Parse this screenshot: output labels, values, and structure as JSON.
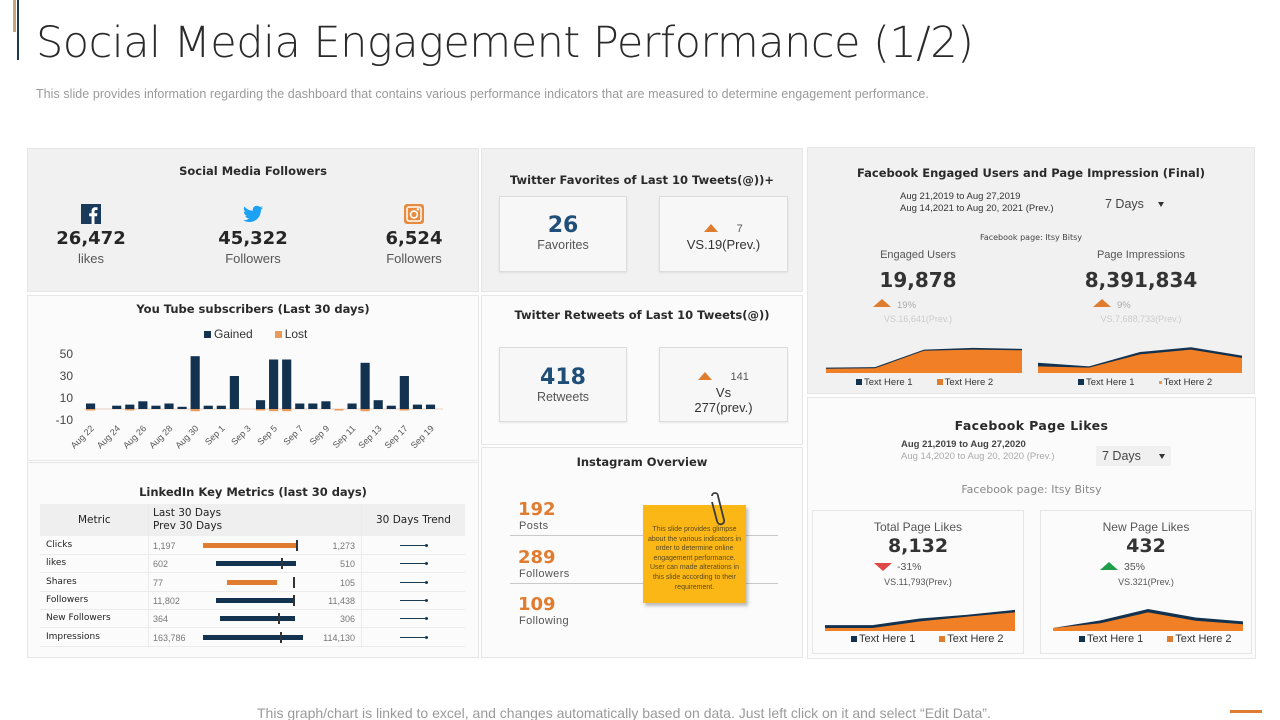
{
  "header": {
    "title": "Social Media Engagement Performance (1/2)",
    "subtitle": "This slide provides  information  regarding  the dashboard  that contains various  performance  indicators that are measured  to determine  engagement  performance."
  },
  "footer": {
    "note": "This graph/chart is linked to excel, and changes automatically based on data. Just left click on it and select “Edit Data”."
  },
  "colors": {
    "navy": "#13324f",
    "orange": "#e07c2f",
    "twitter_blue": "#1da1f2",
    "facebook_navy": "#1a3a5c",
    "red": "#e04848",
    "green": "#1e9e4a",
    "sticky_yellow": "#fbb715"
  },
  "social_followers": {
    "title": "Social Media Followers",
    "items": [
      {
        "icon": "facebook-icon",
        "value": "26,472",
        "label": "likes"
      },
      {
        "icon": "twitter-icon",
        "value": "45,322",
        "label": "Followers"
      },
      {
        "icon": "instagram-icon",
        "value": "6,524",
        "label": "Followers"
      }
    ]
  },
  "youtube": {
    "title": "You Tube subscribers (Last 30 days)",
    "legend": [
      "Gained",
      "Lost"
    ]
  },
  "chart_data": {
    "type": "bar",
    "title": "You Tube subscribers (Last 30 days)",
    "xlabel": "",
    "ylabel": "",
    "ylim": [
      -10,
      50
    ],
    "yticks": [
      50,
      30,
      10,
      -10
    ],
    "tick_labels": [
      "Aug 22",
      "Aug 24",
      "Aug 26",
      "Aug 28",
      "Aug 30",
      "Sep 1",
      "Sep 3",
      "Sep 5",
      "Sep 7",
      "Sep 9",
      "Sep 11",
      "Sep 13",
      "Sep 17",
      "Sep 19"
    ],
    "categories": [
      "Aug 22",
      "Aug 23",
      "Aug 24",
      "Aug 25",
      "Aug 26",
      "Aug 27",
      "Aug 28",
      "Aug 29",
      "Aug 30",
      "Aug 31",
      "Sep 1",
      "Sep 2",
      "Sep 3",
      "Sep 4",
      "Sep 5",
      "Sep 6",
      "Sep 7",
      "Sep 8",
      "Sep 9",
      "Sep 10",
      "Sep 11",
      "Sep 12",
      "Sep 13",
      "Sep 15",
      "Sep 17",
      "Sep 18",
      "Sep 19"
    ],
    "series": [
      {
        "name": "Gained",
        "values": [
          5,
          0,
          3,
          4,
          7,
          3,
          5,
          2,
          48,
          3,
          3,
          30,
          0,
          8,
          45,
          45,
          5,
          5,
          7,
          0,
          5,
          42,
          8,
          3,
          30,
          4,
          4
        ]
      },
      {
        "name": "Lost",
        "values": [
          -1,
          0,
          0,
          -1,
          0,
          0,
          0,
          0,
          -2,
          0,
          0,
          0,
          0,
          -1,
          -2,
          -2,
          0,
          0,
          0,
          -0.5,
          0,
          -2,
          0,
          0,
          -1,
          0,
          0
        ]
      }
    ],
    "legend": "top"
  },
  "linkedin": {
    "title": "LinkedIn Key Metrics (last 30 days)",
    "headers": {
      "metric": "Metric",
      "last": "Last 30 Days",
      "prev": "Prev 30 Days",
      "trend": "30 Days Trend"
    },
    "rows": [
      {
        "metric": "Clicks",
        "last": "1,197",
        "prev": "1,273",
        "bar_color": "orange",
        "bar_start": 0.0,
        "bar_end": 0.94,
        "marker": 0.94
      },
      {
        "metric": "likes",
        "last": "602",
        "prev": "510",
        "bar_color": "navy",
        "bar_start": 0.13,
        "bar_end": 0.93,
        "marker": 0.79
      },
      {
        "metric": "Shares",
        "last": "77",
        "prev": "105",
        "bar_color": "orange",
        "bar_start": 0.24,
        "bar_end": 0.74,
        "marker": 0.91
      },
      {
        "metric": "Followers",
        "last": "11,802",
        "prev": "11,438",
        "bar_color": "navy",
        "bar_start": 0.13,
        "bar_end": 0.91,
        "marker": 0.91
      },
      {
        "metric": "New Followers",
        "last": "364",
        "prev": "306",
        "bar_color": "navy",
        "bar_start": 0.17,
        "bar_end": 0.92,
        "marker": 0.76
      },
      {
        "metric": "Impressions",
        "last": "163,786",
        "prev": "114,130",
        "bar_color": "navy",
        "bar_start": 0.0,
        "bar_end": 1.0,
        "marker": 0.78
      }
    ]
  },
  "twitter_favorites": {
    "title": "Twitter Favorites of Last 10 Tweets(@))+",
    "value": "26",
    "label": "Favorites",
    "change": "7",
    "vs": "VS.19(Prev.)"
  },
  "twitter_retweets": {
    "title": "Twitter Retweets of Last 10 Tweets(@))",
    "value": "418",
    "label": "Retweets",
    "change": "141",
    "vs_line1": "Vs",
    "vs_line2": "277(prev.)"
  },
  "instagram": {
    "title": "Instagram Overview",
    "items": [
      {
        "value": "192",
        "label": "Posts"
      },
      {
        "value": "289",
        "label": "Followers"
      },
      {
        "value": "109",
        "label": "Following"
      }
    ],
    "sticky_note": "This slide provides glimpse about the various indicators in order to determine online engagement  performance. User can made alterations in this slide according to their requirement."
  },
  "fb_engaged": {
    "title": "Facebook Engaged Users and Page Impression (Final)",
    "date_current": "Aug 21,2019 to Aug 27,2019",
    "date_prev": "Aug 14,2021 to Aug 20, 2021 (Prev.)",
    "range": "7 Days",
    "page_label": "Facebook page: Itsy Bitsy",
    "metrics": [
      {
        "label": "Engaged Users",
        "value": "19,878",
        "pct": "19%",
        "prev": "VS.16,641(Prev.)",
        "series1": [
          0.1,
          0.12,
          0.85,
          0.92,
          0.88
        ],
        "series2": [
          0.05,
          0.07,
          0.8,
          0.85,
          0.82
        ]
      },
      {
        "label": "Page Impressions",
        "value": "8,391,834",
        "pct": "9%",
        "prev": "VS.7,688,733(Prev.)",
        "series1": [
          0.3,
          0.15,
          0.75,
          0.95,
          0.6
        ],
        "series2": [
          0.15,
          0.1,
          0.65,
          0.85,
          0.5
        ]
      }
    ],
    "legend": [
      "Text Here 1",
      "Text Here 2"
    ]
  },
  "fb_likes": {
    "title": "Facebook Page Likes",
    "date_current": "Aug 21,2019 to Aug 27,2020",
    "date_prev": "Aug 14,2020 to Aug 20, 2020 (Prev.)",
    "range": "7 Days",
    "page_label": "Facebook page: Itsy Bitsy",
    "cards": [
      {
        "label": "Total Page Likes",
        "value": "8,132",
        "pct": "-31%",
        "direction": "down",
        "prev": "VS.11,793(Prev.)",
        "series1": [
          0.15,
          0.15,
          0.5,
          0.7,
          0.95
        ],
        "series2": [
          0.0,
          0.0,
          0.35,
          0.6,
          0.82
        ]
      },
      {
        "label": "New Page Likes",
        "value": "432",
        "pct": "35%",
        "direction": "up",
        "prev": "VS.321(Prev.)",
        "series1": [
          0.0,
          0.4,
          1.0,
          0.55,
          0.35
        ],
        "series2": [
          0.0,
          0.25,
          0.82,
          0.38,
          0.2
        ]
      }
    ],
    "legend": [
      "Text Here 1",
      "Text Here 2"
    ]
  }
}
